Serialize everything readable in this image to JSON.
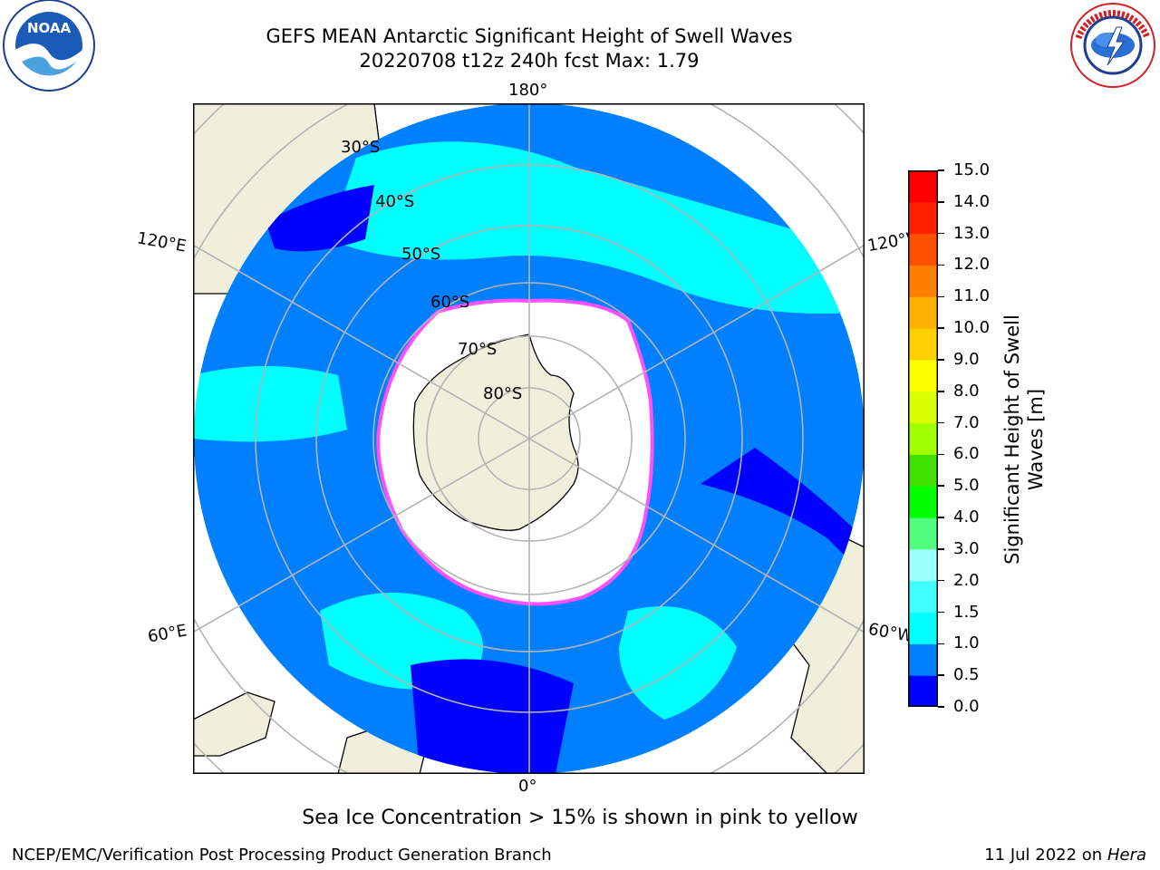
{
  "header": {
    "title_line1": "GEFS MEAN Antarctic Significant Height of Swell Waves",
    "title_line2": "20220708 t12z 240h fcst   Max: 1.79"
  },
  "logos": {
    "noaa_text": "NOAA",
    "noaa_ring_text": "NATIONAL OCEANIC AND ATMOSPHERIC ADMINISTRATION · U.S. DEPARTMENT OF COMMERCE",
    "nws_ring_text": "NATIONAL WEATHER SERVICE"
  },
  "map": {
    "projection": "south-polar-stereographic",
    "lon_labels": {
      "top": "180°",
      "bottom": "0°",
      "upper_left": "120°E",
      "upper_right": "120°W",
      "lower_left": "60°E",
      "lower_right": "60°W"
    },
    "lat_labels": [
      "30°S",
      "40°S",
      "50°S",
      "60°S",
      "70°S",
      "80°S"
    ],
    "sea_ice_note": "Sea Ice Concentration > 15% is shown in pink to yellow"
  },
  "colorbar": {
    "title": "Significant Height of Swell Waves [m]",
    "ticks": [
      "15.0",
      "14.0",
      "13.0",
      "12.0",
      "11.0",
      "10.0",
      "9.0",
      "8.0",
      "7.0",
      "6.0",
      "5.0",
      "4.0",
      "3.0",
      "2.0",
      "1.5",
      "1.0",
      "0.5",
      "0.0"
    ],
    "colors": [
      "#0000ff",
      "#0080ff",
      "#00ffff",
      "#40ffff",
      "#a0ffff",
      "#50ff80",
      "#00ff00",
      "#40e000",
      "#a0ff00",
      "#d8ff00",
      "#ffff00",
      "#ffd000",
      "#ffb000",
      "#ff8000",
      "#ff5000",
      "#ff2000",
      "#ff0000"
    ]
  },
  "footer": {
    "left": "NCEP/EMC/Verification Post Processing Product Generation Branch",
    "right_date": "11 Jul 2022 on",
    "right_host": "Hera"
  }
}
